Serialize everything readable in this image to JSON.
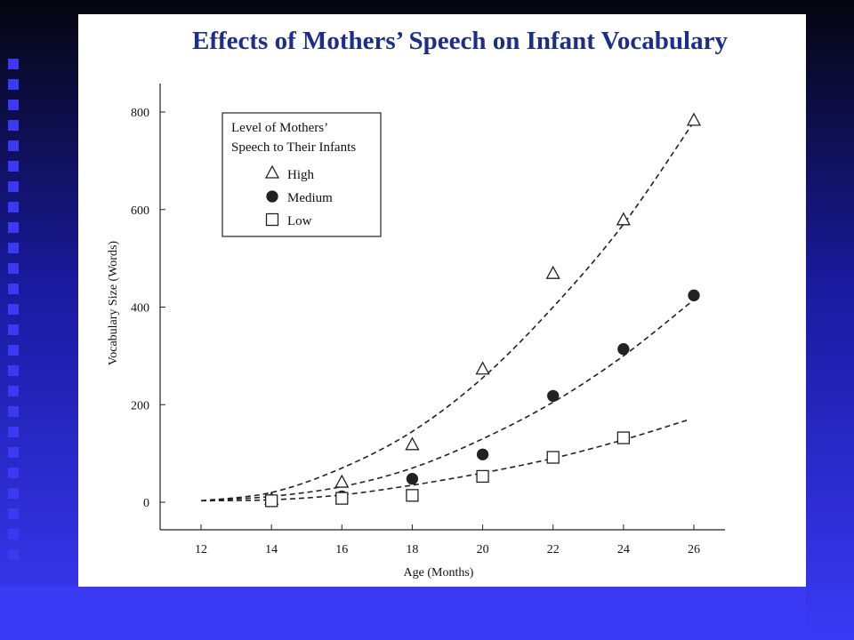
{
  "slide": {
    "title": "Effects of Mothers’ Speech on Infant Vocabulary"
  },
  "colors": {
    "background": "#3a3af0",
    "title": "#1c2e8c",
    "ink": "#111111"
  },
  "chart_data": {
    "type": "scatter",
    "xlabel": "Age (Months)",
    "ylabel": "Vocabulary Size (Words)",
    "xlim": [
      12,
      26
    ],
    "ylim": [
      0,
      800
    ],
    "xticks": [
      12,
      14,
      16,
      18,
      20,
      22,
      24,
      26
    ],
    "yticks": [
      0,
      200,
      400,
      600,
      800
    ],
    "grid": false,
    "legend": {
      "title_lines": [
        "Level of Mothers’",
        "Speech to Their Infants"
      ],
      "placement": "top-left"
    },
    "series": [
      {
        "name": "High",
        "marker": "triangle-open",
        "x": [
          14,
          16,
          18,
          20,
          22,
          24,
          26
        ],
        "y": [
          5,
          40,
          117,
          272,
          468,
          578,
          782
        ],
        "fit": {
          "x": [
            12,
            14,
            16,
            18,
            20,
            22,
            24,
            26
          ],
          "y": [
            3,
            20,
            70,
            145,
            255,
            400,
            570,
            780
          ]
        }
      },
      {
        "name": "Medium",
        "marker": "circle-filled",
        "x": [
          16,
          18,
          20,
          22,
          24,
          26
        ],
        "y": [
          12,
          48,
          98,
          218,
          314,
          424
        ],
        "fit": {
          "x": [
            12,
            14,
            16,
            18,
            20,
            22,
            24,
            26
          ],
          "y": [
            3,
            12,
            32,
            70,
            130,
            205,
            300,
            415
          ]
        }
      },
      {
        "name": "Low",
        "marker": "square-open",
        "x": [
          14,
          16,
          18,
          20,
          22,
          24
        ],
        "y": [
          3,
          8,
          14,
          53,
          92,
          132
        ],
        "fit": {
          "x": [
            12,
            14,
            16,
            18,
            20,
            22,
            24,
            25.8
          ],
          "y": [
            3,
            5,
            15,
            35,
            60,
            90,
            128,
            168
          ]
        }
      }
    ]
  }
}
